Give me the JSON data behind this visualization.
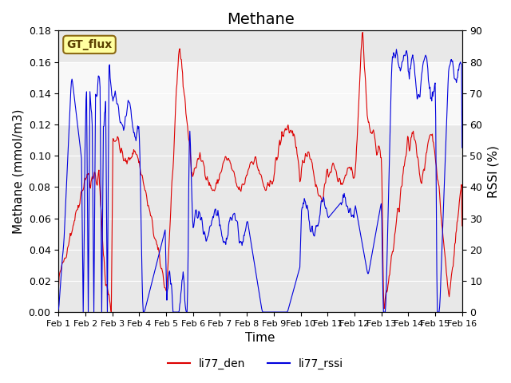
{
  "title": "Methane",
  "xlabel": "Time",
  "ylabel_left": "Methane (mmol/m3)",
  "ylabel_right": "RSSI (%)",
  "ylim_left": [
    0,
    0.18
  ],
  "ylim_right": [
    0,
    90
  ],
  "yticks_left": [
    0.0,
    0.02,
    0.04,
    0.06,
    0.08,
    0.1,
    0.12,
    0.14,
    0.16,
    0.18
  ],
  "yticks_right": [
    0,
    10,
    20,
    30,
    40,
    50,
    60,
    70,
    80,
    90
  ],
  "shade_band": [
    0.12,
    0.16
  ],
  "gt_flux_label": "GT_flux",
  "legend_entries": [
    "li77_den",
    "li77_rssi"
  ],
  "line_colors": [
    "#dd0000",
    "#0000dd"
  ],
  "background_color": "#ffffff",
  "plot_bg_color": "#e8e8e8",
  "title_fontsize": 14,
  "label_fontsize": 11,
  "tick_fontsize": 9,
  "xtick_labels": [
    "Feb 1",
    "Feb 2",
    "Feb 3",
    "Feb 4",
    "Feb 5",
    "Feb 6",
    "Feb 7",
    "Feb 8",
    "Feb 9",
    "Feb 10",
    "Feb 11",
    "Feb 12",
    "Feb 13",
    "Feb 14",
    "Feb 15",
    "Feb 16"
  ],
  "n_days": 16,
  "points_per_day": 48
}
